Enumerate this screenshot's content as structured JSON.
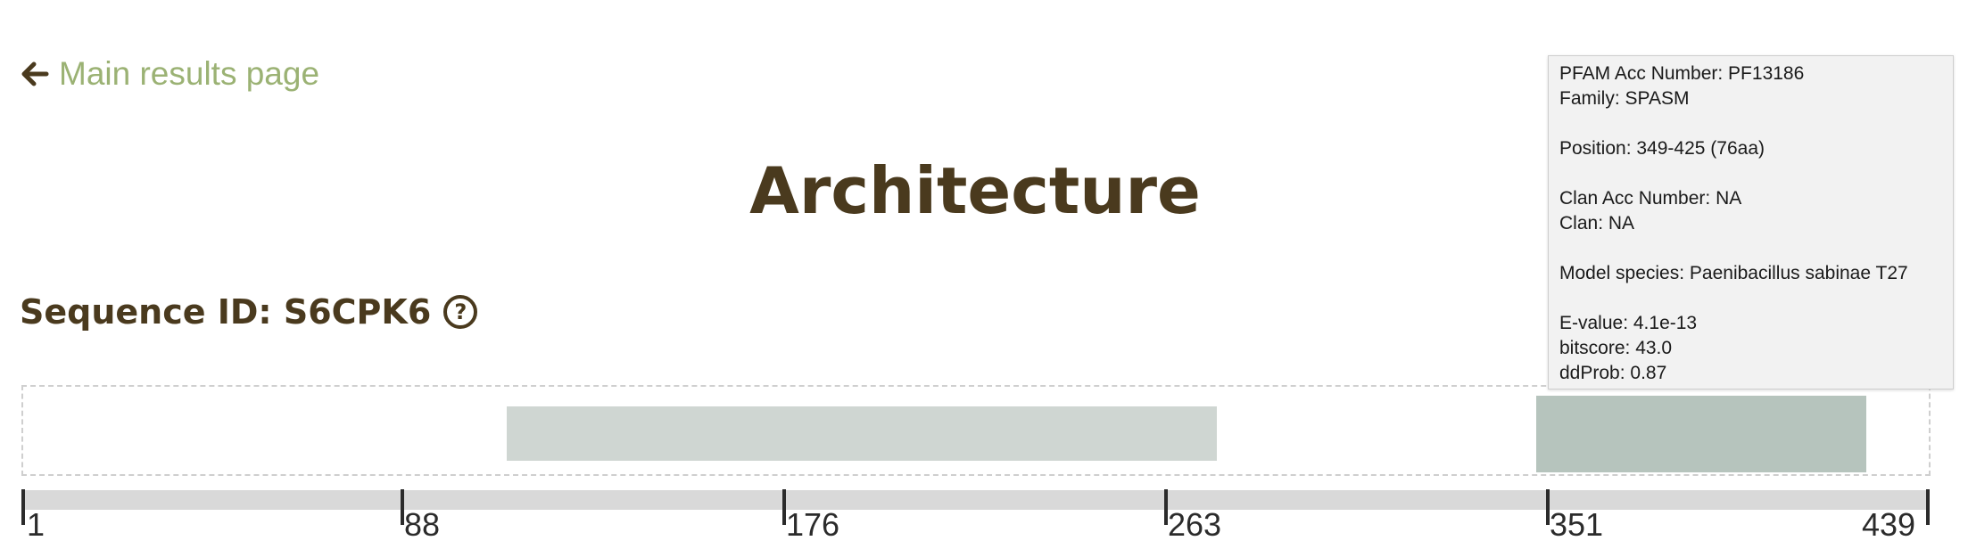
{
  "nav": {
    "back_label": "Main results page"
  },
  "page": {
    "title": "Architecture"
  },
  "sequence": {
    "label": "Sequence ID: S6CPK6",
    "help_glyph": "?"
  },
  "ruler": {
    "ticks": [
      "1",
      "88",
      "176",
      "263",
      "351",
      "439"
    ]
  },
  "tooltip": {
    "pfam_acc": "PFAM Acc Number: PF13186",
    "family": "Family: SPASM",
    "position": "Position: 349-425 (76aa)",
    "clan_acc": "Clan Acc Number: NA",
    "clan": "Clan: NA",
    "model_species": "Model species: Paenibacillus sabinae T27",
    "evalue": "E-value: 4.1e-13",
    "bitscore": "bitscore: 43.0",
    "ddprob": "ddProb: 0.87"
  },
  "colors": {
    "title": "#4a3a1e",
    "link": "#9bb274",
    "domain_1": "#cfd6d2",
    "domain_2": "#b6c4bd",
    "ruler": "#d9d9d9"
  }
}
